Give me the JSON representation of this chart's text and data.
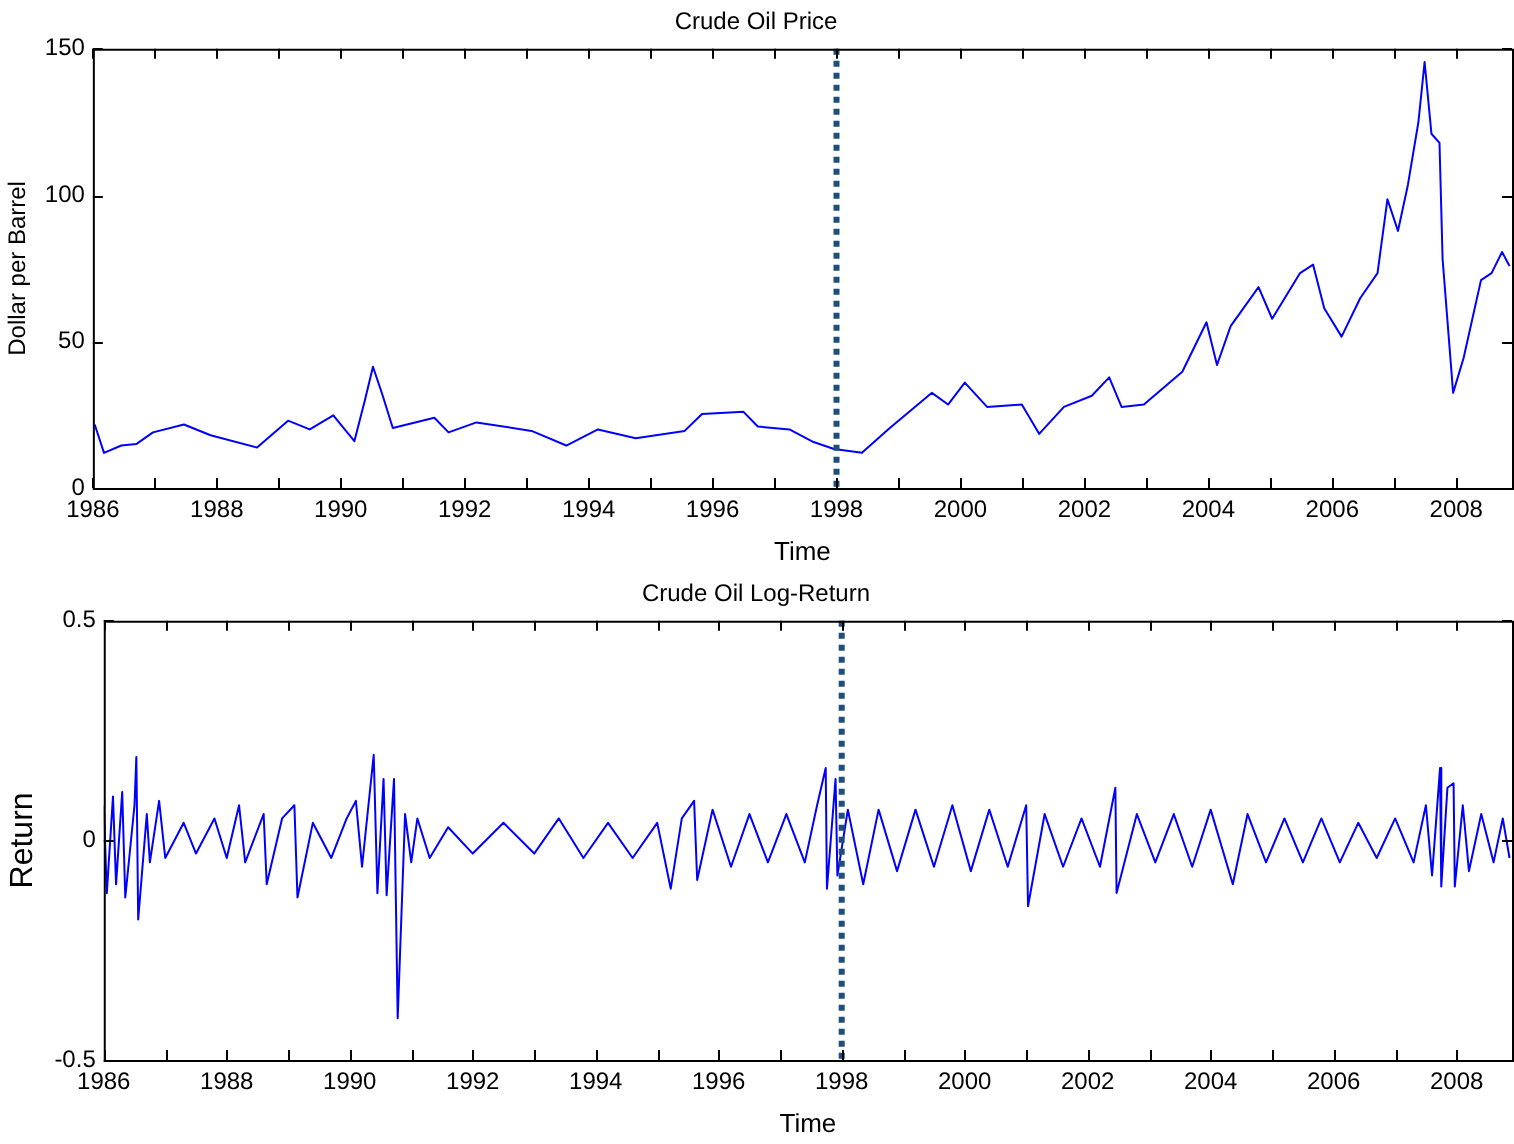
{
  "chart_data": [
    {
      "type": "line",
      "title": "Crude Oil Price",
      "xlabel": "Time",
      "ylabel": "Dollar per Barrel",
      "xlim": [
        1986,
        2008.9
      ],
      "ylim": [
        0,
        150
      ],
      "yticks": [
        0,
        50,
        100,
        150
      ],
      "xticks": [
        1986,
        {
          "value": 1987,
          "label": null
        },
        1988,
        {
          "value": 1989,
          "label": null
        },
        1990,
        {
          "value": 1991,
          "label": null
        },
        1992,
        {
          "value": 1993,
          "label": null
        },
        1994,
        {
          "value": 1995,
          "label": null
        },
        1996,
        {
          "value": 1997,
          "label": null
        },
        1998,
        {
          "value": 1999,
          "label": null
        },
        2000,
        {
          "value": 2001,
          "label": null
        },
        2002,
        {
          "value": 2003,
          "label": null
        },
        2004,
        {
          "value": 2005,
          "label": null
        },
        2006,
        {
          "value": 2007,
          "label": null
        },
        2008
      ],
      "ref_lines": [
        {
          "axis": "x",
          "value": 1998,
          "color": "#1f4e79",
          "line_style": "dotted"
        }
      ],
      "x": [
        1986.03,
        1986.18,
        1986.46,
        1986.7,
        1986.97,
        1987.47,
        1987.9,
        1988.65,
        1989.15,
        1989.5,
        1989.88,
        1990.22,
        1990.39,
        1990.52,
        1990.67,
        1990.84,
        1991.51,
        1991.74,
        1992.19,
        1993.08,
        1993.64,
        1994.15,
        1994.76,
        1995.55,
        1995.83,
        1996.5,
        1996.73,
        1997.24,
        1997.63,
        1997.96,
        1998.41,
        1998.86,
        1999.54,
        1999.8,
        2000.07,
        2000.43,
        2000.99,
        2001.27,
        2001.67,
        2002.12,
        2002.4,
        2002.6,
        2002.96,
        2003.58,
        2003.97,
        2004.14,
        2004.36,
        2004.81,
        2005.03,
        2005.48,
        2005.69,
        2005.87,
        2006.15,
        2006.45,
        2006.73,
        2006.89,
        2007.06,
        2007.22,
        2007.39,
        2007.49,
        2007.6,
        2007.73,
        2007.78,
        2007.95,
        2008.12,
        2008.4,
        2008.57,
        2008.74,
        2008.86
      ],
      "series": [
        {
          "color": "#0000ff",
          "values": [
            21.7,
            12,
            14.5,
            15,
            19,
            21.7,
            18,
            13.8,
            23,
            20,
            24.8,
            16,
            30,
            41.4,
            32,
            20.5,
            24,
            19,
            22.4,
            19.5,
            14.5,
            20,
            17,
            19.5,
            25.3,
            26,
            21,
            20,
            15.7,
            13.3,
            12,
            20.5,
            32.5,
            28.5,
            36,
            27.7,
            28.5,
            18.5,
            27.7,
            31.5,
            37.8,
            27.7,
            28.5,
            39.7,
            56.6,
            42,
            55.3,
            68.6,
            57.8,
            73.4,
            76.3,
            61.4,
            51.7,
            64.8,
            73.4,
            98.6,
            87.8,
            103.5,
            125,
            145.5,
            121,
            117.9,
            78.2,
            32.5,
            44.5,
            71,
            73.4,
            80.6,
            75.8
          ]
        }
      ]
    },
    {
      "type": "line",
      "title": "Crude Oil Log-Return",
      "xlabel": "Time",
      "ylabel": "Return",
      "xlim": [
        1986,
        2008.9
      ],
      "ylim": [
        -0.5,
        0.5
      ],
      "yticks": [
        -0.5,
        0,
        0.5
      ],
      "xticks": [
        1986,
        {
          "value": 1987,
          "label": null
        },
        1988,
        {
          "value": 1989,
          "label": null
        },
        1990,
        {
          "value": 1991,
          "label": null
        },
        1992,
        {
          "value": 1993,
          "label": null
        },
        1994,
        {
          "value": 1995,
          "label": null
        },
        1996,
        {
          "value": 1997,
          "label": null
        },
        1998,
        {
          "value": 1999,
          "label": null
        },
        2000,
        {
          "value": 2001,
          "label": null
        },
        2002,
        {
          "value": 2003,
          "label": null
        },
        2004,
        {
          "value": 2005,
          "label": null
        },
        2006,
        {
          "value": 2007,
          "label": null
        },
        2008
      ],
      "ref_lines": [
        {
          "axis": "x",
          "value": 1998,
          "color": "#1f4e79",
          "line_style": "dotted"
        }
      ],
      "x": [
        1986.0,
        1986.05,
        1986.15,
        1986.2,
        1986.3,
        1986.35,
        1986.5,
        1986.53,
        1986.56,
        1986.7,
        1986.75,
        1986.9,
        1987.0,
        1987.3,
        1987.5,
        1987.8,
        1988.0,
        1988.2,
        1988.3,
        1988.6,
        1988.65,
        1988.9,
        1989.1,
        1989.15,
        1989.4,
        1989.7,
        1989.95,
        1990.1,
        1990.2,
        1990.39,
        1990.45,
        1990.55,
        1990.6,
        1990.72,
        1990.78,
        1990.9,
        1991.0,
        1991.1,
        1991.3,
        1991.6,
        1992.0,
        1992.5,
        1993.0,
        1993.4,
        1993.8,
        1994.2,
        1994.6,
        1995.0,
        1995.22,
        1995.4,
        1995.6,
        1995.65,
        1995.9,
        1996.2,
        1996.5,
        1996.8,
        1997.1,
        1997.4,
        1997.6,
        1997.74,
        1997.76,
        1997.9,
        1997.93,
        1998.1,
        1998.35,
        1998.6,
        1998.9,
        1999.2,
        1999.5,
        1999.8,
        2000.1,
        2000.4,
        2000.7,
        2001.0,
        2001.03,
        2001.3,
        2001.6,
        2001.9,
        2002.2,
        2002.45,
        2002.47,
        2002.8,
        2003.1,
        2003.4,
        2003.7,
        2004.0,
        2004.36,
        2004.6,
        2004.9,
        2005.2,
        2005.5,
        2005.8,
        2006.1,
        2006.4,
        2006.7,
        2007.0,
        2007.3,
        2007.5,
        2007.6,
        2007.73,
        2007.75,
        2007.85,
        2007.95,
        2007.97,
        2008.1,
        2008.2,
        2008.4,
        2008.6,
        2008.75,
        2008.86
      ],
      "series": [
        {
          "color": "#0000ff",
          "values": [
            0.08,
            -0.12,
            0.1,
            -0.1,
            0.11,
            -0.13,
            0.08,
            0.19,
            -0.18,
            0.06,
            -0.05,
            0.09,
            -0.04,
            0.04,
            -0.03,
            0.05,
            -0.04,
            0.08,
            -0.05,
            0.06,
            -0.1,
            0.05,
            0.08,
            -0.13,
            0.04,
            -0.04,
            0.05,
            0.09,
            -0.06,
            0.195,
            -0.12,
            0.14,
            -0.125,
            0.14,
            -0.405,
            0.06,
            -0.05,
            0.05,
            -0.04,
            0.03,
            -0.03,
            0.04,
            -0.03,
            0.05,
            -0.04,
            0.04,
            -0.04,
            0.04,
            -0.11,
            0.05,
            0.09,
            -0.09,
            0.07,
            -0.06,
            0.06,
            -0.05,
            0.06,
            -0.05,
            0.08,
            0.165,
            -0.11,
            0.14,
            -0.08,
            0.07,
            -0.1,
            0.07,
            -0.07,
            0.07,
            -0.06,
            0.08,
            -0.07,
            0.07,
            -0.06,
            0.08,
            -0.15,
            0.06,
            -0.06,
            0.05,
            -0.06,
            0.12,
            -0.12,
            0.06,
            -0.05,
            0.06,
            -0.06,
            0.07,
            -0.1,
            0.06,
            -0.05,
            0.05,
            -0.05,
            0.05,
            -0.05,
            0.04,
            -0.04,
            0.05,
            -0.05,
            0.08,
            -0.08,
            0.165,
            -0.105,
            0.12,
            0.13,
            -0.105,
            0.08,
            -0.07,
            0.06,
            -0.05,
            0.05,
            -0.04
          ]
        }
      ]
    }
  ]
}
